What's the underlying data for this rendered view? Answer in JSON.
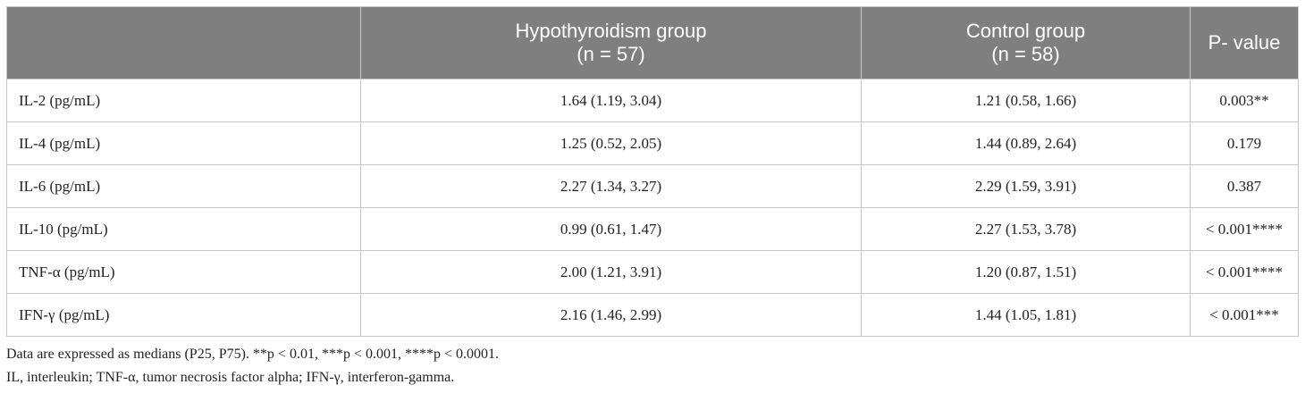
{
  "table": {
    "header": [
      [
        "Hypothyroidism group",
        "(n = 57)"
      ],
      [
        "Control group",
        "(n = 58)"
      ],
      [
        "P- value"
      ]
    ],
    "rows": [
      [
        "IL-2 (pg/mL)",
        "1.64 (1.19, 3.04)",
        "1.21 (0.58, 1.66)",
        "0.003**"
      ],
      [
        "IL-4 (pg/mL)",
        "1.25 (0.52, 2.05)",
        "1.44 (0.89, 2.64)",
        "0.179"
      ],
      [
        "IL-6 (pg/mL)",
        "2.27 (1.34, 3.27)",
        "2.29 (1.59, 3.91)",
        "0.387"
      ],
      [
        "IL-10 (pg/mL)",
        "0.99 (0.61, 1.47)",
        "2.27 (1.53, 3.78)",
        "< 0.001****"
      ],
      [
        "TNF-α (pg/mL)",
        "2.00 (1.21, 3.91)",
        "1.20 (0.87, 1.51)",
        "< 0.001****"
      ],
      [
        "IFN-γ (pg/mL)",
        "2.16 (1.46, 2.99)",
        "1.44 (1.05, 1.81)",
        "< 0.001***"
      ]
    ],
    "footnotes": [
      "Data are expressed as medians (P25, P75). **p < 0.01, ***p < 0.001, ****p < 0.0001.",
      "IL, interleukin; TNF-α, tumor necrosis factor alpha; IFN-γ, interferon-gamma."
    ]
  }
}
